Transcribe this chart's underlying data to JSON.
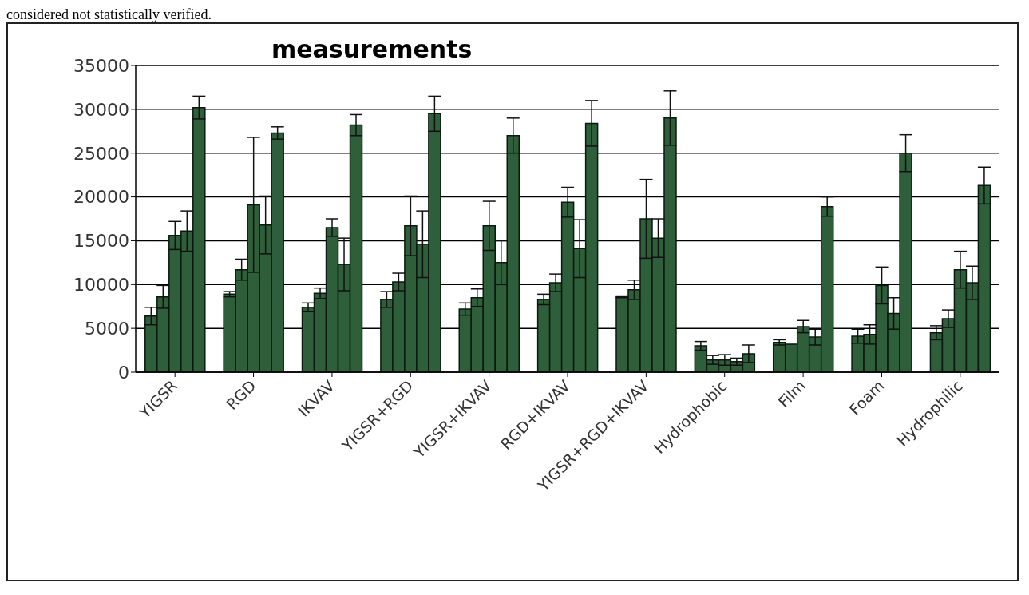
{
  "chart_data": {
    "type": "bar",
    "title": "measurements",
    "annotations": [
      "considered not statistically verified."
    ],
    "categories": [
      "YIGSR",
      "RGD",
      "IKVAV",
      "YIGSR+RGD",
      "YIGSR+IKVAV",
      "RGD+IKVAV",
      "YIGSR+RGD+IKVAV",
      "Hydrophobic",
      "Film",
      "Foam",
      "Hydrophilic"
    ],
    "series": [
      {
        "color": "#2e5e3a",
        "values": [
          6400,
          8900,
          7400,
          8300,
          7200,
          8300,
          8600,
          3000,
          3400,
          4100,
          4500
        ],
        "errors": [
          1000,
          300,
          500,
          900,
          700,
          600,
          100,
          500,
          300,
          800,
          800
        ]
      },
      {
        "color": "#2e5e3a",
        "values": [
          8600,
          11700,
          9000,
          10300,
          8500,
          10200,
          9400,
          1400,
          3200,
          4300,
          6100
        ],
        "errors": [
          1300,
          1200,
          600,
          1000,
          1000,
          1000,
          1100,
          500,
          0,
          1100,
          1000
        ]
      },
      {
        "color": "#2e5e3a",
        "values": [
          15600,
          19100,
          16500,
          16700,
          16700,
          19400,
          17500,
          1400,
          5200,
          9900,
          11700
        ],
        "errors": [
          1600,
          7700,
          1000,
          3400,
          2800,
          1700,
          4500,
          600,
          700,
          2100,
          2100
        ]
      },
      {
        "color": "#2e5e3a",
        "values": [
          16100,
          16800,
          12300,
          14600,
          12500,
          14100,
          15300,
          1200,
          4000,
          6700,
          10200
        ],
        "errors": [
          2300,
          3300,
          3000,
          3800,
          2500,
          3300,
          2200,
          400,
          900,
          1800,
          1900
        ]
      },
      {
        "color": "#2e5e3a",
        "values": [
          30200,
          27300,
          28200,
          29500,
          27000,
          28400,
          29000,
          2100,
          18900,
          25000,
          21300
        ],
        "errors": [
          1300,
          700,
          1200,
          2000,
          2000,
          2600,
          3100,
          1000,
          1100,
          2100,
          2100
        ]
      }
    ],
    "ylim": [
      0,
      35000
    ],
    "yticks": [
      0,
      5000,
      10000,
      15000,
      20000,
      25000,
      30000,
      35000
    ],
    "grid": "y"
  }
}
